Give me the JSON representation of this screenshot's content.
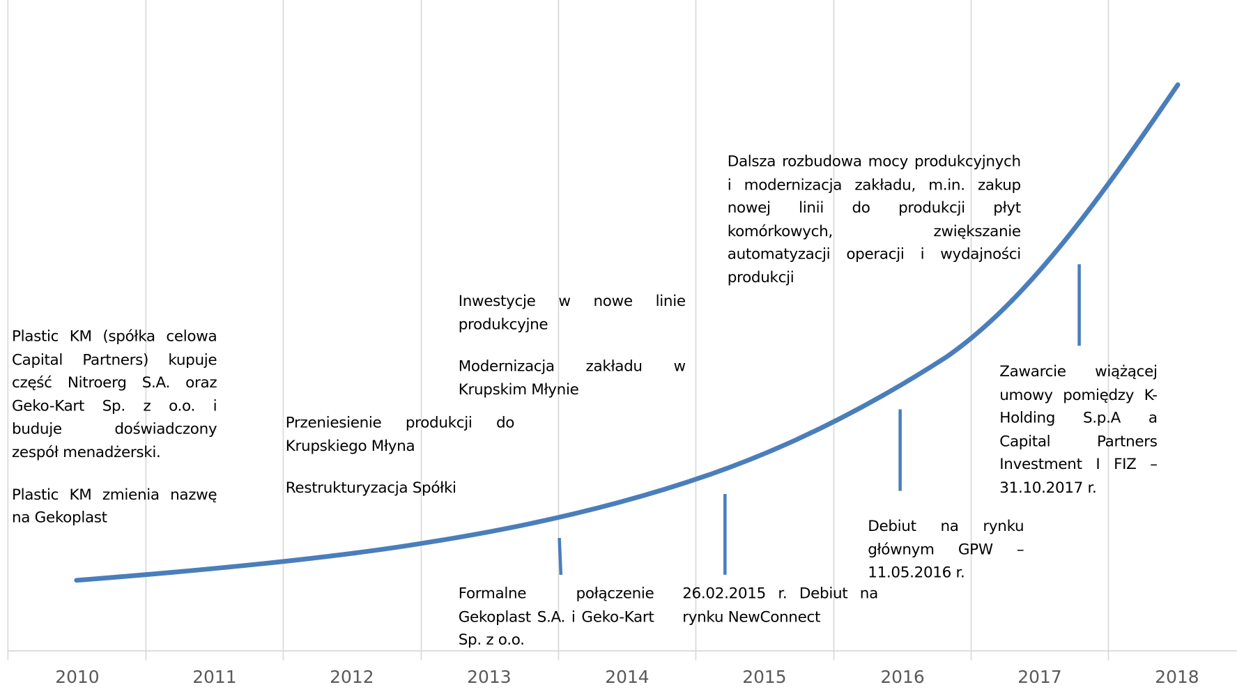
{
  "axis": {
    "years": [
      "2010",
      "2011",
      "2012",
      "2013",
      "2014",
      "2015",
      "2016",
      "2017",
      "2018"
    ]
  },
  "events": [
    {
      "paragraphs": [
        "Plastic KM (spółka celowa Capital Partners) kupuje część Nitroerg S.A. oraz Geko-Kart Sp. z o.o. i buduje doświadczony zespół menadżerski.",
        "Plastic KM zmienia nazwę na Gekoplast"
      ]
    },
    {
      "paragraphs": [
        "Przeniesienie produkcji do Krupskiego Młyna",
        "Restrukturyzacja Spółki"
      ]
    },
    {
      "paragraphs": [
        "Inwestycje w nowe linie produkcyjne",
        "Modernizacja zakładu w Krupskim Młynie"
      ]
    },
    {
      "paragraphs": [
        "Formalne połączenie Gekoplast S.A. i Geko-Kart Sp. z o.o."
      ]
    },
    {
      "paragraphs": [
        "26.02.2015 r. Debiut na rynku NewConnect"
      ]
    },
    {
      "paragraphs": [
        "Dalsza rozbudowa mocy produkcyjnych i modernizacja zakładu, m.in. zakup nowej linii do produkcji płyt komórkowych, zwiększanie automatyzacji operacji i wydajności produkcji"
      ]
    },
    {
      "paragraphs": [
        "Debiut na rynku głównym GPW – 11.05.2016 r."
      ]
    },
    {
      "paragraphs": [
        "Zawarcie wiążącej umowy pomiędzy K-Holding S.p.A a Capital Partners Investment I FIZ – 31.10.2017 r."
      ]
    }
  ]
}
